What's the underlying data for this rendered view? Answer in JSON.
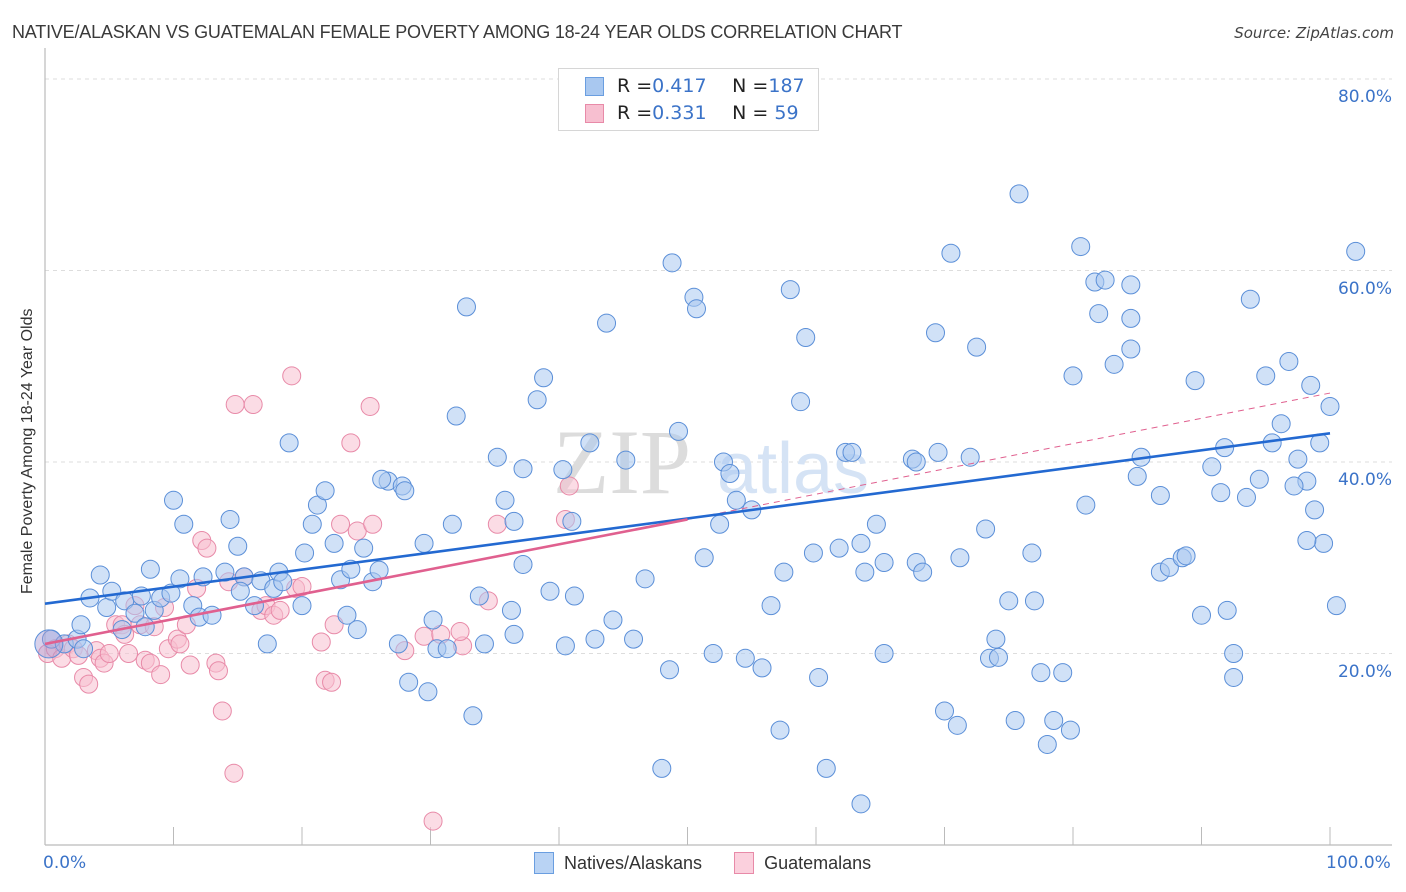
{
  "title": "NATIVE/ALASKAN VS GUATEMALAN FEMALE POVERTY AMONG 18-24 YEAR OLDS CORRELATION CHART",
  "source": "Source: ZipAtlas.com",
  "watermark": {
    "zip": "ZIP",
    "atlas": "atlas"
  },
  "legend": {
    "rows": [
      {
        "r_label": "R = ",
        "r_value": "0.417",
        "n_label": "N = ",
        "n_value": "187",
        "color": "#a9c8f0",
        "border": "#6a9ee0"
      },
      {
        "r_label": "R = ",
        "r_value": "0.331",
        "n_label": "N = ",
        "n_value": " 59",
        "color": "#f7bfd0",
        "border": "#e88aa8"
      }
    ]
  },
  "bottom_legend": [
    "Natives/Alaskans",
    "Guatemalans"
  ],
  "chart_data": {
    "type": "scatter",
    "title": "NATIVE/ALASKAN VS GUATEMALAN FEMALE POVERTY AMONG 18-24 YEAR OLDS CORRELATION CHART",
    "xlabel": "",
    "ylabel": "Female Poverty Among 18-24 Year Olds",
    "xlim": [
      0,
      100
    ],
    "ylim": [
      0,
      80
    ],
    "x_tick_labels": [
      "0.0%",
      "100.0%"
    ],
    "y_ticks": [
      20,
      40,
      60,
      80
    ],
    "y_tick_labels": [
      "20.0%",
      "40.0%",
      "60.0%",
      "80.0%"
    ],
    "grid": true,
    "legend_position": "top-center",
    "series": [
      {
        "name": "Natives/Alaskans",
        "color": "#a9c8f0",
        "stroke": "#5b8fd8",
        "R": 0.417,
        "N": 187,
        "trend": {
          "x": [
            0,
            100
          ],
          "y": [
            25.2,
            43.0
          ],
          "color": "#2369d1"
        },
        "points": [
          [
            0.5,
            21.5
          ],
          [
            1.5,
            21.0
          ],
          [
            2.5,
            21.5
          ],
          [
            3,
            20.5
          ],
          [
            2.8,
            23.0
          ],
          [
            3.5,
            25.8
          ],
          [
            4.3,
            28.2
          ],
          [
            4.8,
            24.8
          ],
          [
            5.2,
            26.5
          ],
          [
            6,
            22.5
          ],
          [
            6.2,
            25.5
          ],
          [
            7,
            24.2
          ],
          [
            7.5,
            26.0
          ],
          [
            7.8,
            22.8
          ],
          [
            8.2,
            28.8
          ],
          [
            8.5,
            24.5
          ],
          [
            9,
            25.8
          ],
          [
            9.8,
            26.3
          ],
          [
            10,
            36.0
          ],
          [
            10.5,
            27.8
          ],
          [
            10.8,
            33.5
          ],
          [
            11.5,
            25.0
          ],
          [
            12,
            23.8
          ],
          [
            12.3,
            28.0
          ],
          [
            13,
            24.0
          ],
          [
            14,
            28.5
          ],
          [
            14.4,
            34.0
          ],
          [
            15,
            31.2
          ],
          [
            15.5,
            28.0
          ],
          [
            15.2,
            26.5
          ],
          [
            16.8,
            27.6
          ],
          [
            16.3,
            25.0
          ],
          [
            17.3,
            21.0
          ],
          [
            17.8,
            26.8
          ],
          [
            18.2,
            28.5
          ],
          [
            18.5,
            27.5
          ],
          [
            19,
            42.0
          ],
          [
            20,
            25.0
          ],
          [
            20.2,
            30.5
          ],
          [
            20.8,
            33.5
          ],
          [
            21.2,
            35.5
          ],
          [
            21.8,
            37.0
          ],
          [
            22.5,
            31.5
          ],
          [
            23,
            27.7
          ],
          [
            23.5,
            24.0
          ],
          [
            23.8,
            28.8
          ],
          [
            24.3,
            22.5
          ],
          [
            24.8,
            31.0
          ],
          [
            25.5,
            27.5
          ],
          [
            26,
            28.7
          ],
          [
            26.7,
            38.0
          ],
          [
            26.2,
            38.2
          ],
          [
            27.5,
            21.0
          ],
          [
            27.8,
            37.5
          ],
          [
            28,
            37.0
          ],
          [
            28.3,
            17.0
          ],
          [
            29.5,
            31.5
          ],
          [
            29.8,
            16.0
          ],
          [
            30.2,
            23.5
          ],
          [
            30.5,
            20.5
          ],
          [
            31.3,
            20.5
          ],
          [
            31.7,
            33.5
          ],
          [
            32,
            44.8
          ],
          [
            32.8,
            56.2
          ],
          [
            33.3,
            13.5
          ],
          [
            34.2,
            21.0
          ],
          [
            33.8,
            26.0
          ],
          [
            35.2,
            40.5
          ],
          [
            35.8,
            36.0
          ],
          [
            36.3,
            24.5
          ],
          [
            36.5,
            22.0
          ],
          [
            36.5,
            33.8
          ],
          [
            37.2,
            29.3
          ],
          [
            37.2,
            39.3
          ],
          [
            38.3,
            46.5
          ],
          [
            38.8,
            48.8
          ],
          [
            39.3,
            26.5
          ],
          [
            40.3,
            39.2
          ],
          [
            40.5,
            20.8
          ],
          [
            41,
            33.8
          ],
          [
            41.2,
            26.0
          ],
          [
            42.4,
            42.0
          ],
          [
            42.8,
            21.5
          ],
          [
            43.7,
            54.5
          ],
          [
            44.2,
            23.5
          ],
          [
            45.2,
            40.2
          ],
          [
            45.8,
            21.5
          ],
          [
            46.7,
            27.8
          ],
          [
            48,
            8.0
          ],
          [
            48.6,
            18.3
          ],
          [
            48.8,
            60.8
          ],
          [
            49.3,
            43.2
          ],
          [
            50.5,
            57.2
          ],
          [
            50.7,
            56.0
          ],
          [
            51.3,
            30.0
          ],
          [
            52,
            20.0
          ],
          [
            52.8,
            40.0
          ],
          [
            52.5,
            33.5
          ],
          [
            53.3,
            38.8
          ],
          [
            53.8,
            36.0
          ],
          [
            54.5,
            19.5
          ],
          [
            55,
            35.0
          ],
          [
            55.8,
            18.5
          ],
          [
            56.5,
            25.0
          ],
          [
            57.2,
            12.0
          ],
          [
            57.5,
            28.5
          ],
          [
            58,
            58.0
          ],
          [
            58.8,
            46.3
          ],
          [
            59.2,
            53.0
          ],
          [
            60.2,
            17.5
          ],
          [
            59.8,
            30.5
          ],
          [
            60.8,
            8.0
          ],
          [
            61.8,
            31.0
          ],
          [
            62.3,
            41.0
          ],
          [
            62.8,
            41.0
          ],
          [
            63.5,
            31.5
          ],
          [
            63.8,
            28.5
          ],
          [
            63.5,
            4.3
          ],
          [
            64.7,
            33.5
          ],
          [
            65.3,
            29.5
          ],
          [
            65.3,
            20.0
          ],
          [
            67.5,
            40.3
          ],
          [
            67.8,
            40.0
          ],
          [
            67.8,
            29.5
          ],
          [
            68.3,
            28.5
          ],
          [
            69.3,
            53.5
          ],
          [
            69.5,
            41.0
          ],
          [
            70,
            14.0
          ],
          [
            70.5,
            61.8
          ],
          [
            71,
            12.5
          ],
          [
            71.2,
            30.0
          ],
          [
            72,
            40.5
          ],
          [
            72.5,
            52.0
          ],
          [
            73.2,
            33.0
          ],
          [
            73.5,
            19.5
          ],
          [
            74,
            21.5
          ],
          [
            74.2,
            19.6
          ],
          [
            75,
            25.5
          ],
          [
            75.5,
            13.0
          ],
          [
            75.8,
            68.0
          ],
          [
            76.8,
            30.5
          ],
          [
            77,
            25.5
          ],
          [
            78.5,
            13.0
          ],
          [
            77.5,
            18.0
          ],
          [
            78,
            10.5
          ],
          [
            79.2,
            18.0
          ],
          [
            79.8,
            12.0
          ],
          [
            80,
            49.0
          ],
          [
            80.6,
            62.5
          ],
          [
            81,
            35.5
          ],
          [
            81.7,
            58.8
          ],
          [
            82,
            55.5
          ],
          [
            82.5,
            59.0
          ],
          [
            83.2,
            50.2
          ],
          [
            84.5,
            51.8
          ],
          [
            84.5,
            55.0
          ],
          [
            84.5,
            58.5
          ],
          [
            85,
            38.5
          ],
          [
            85.3,
            40.5
          ],
          [
            86.8,
            36.5
          ],
          [
            86.8,
            28.5
          ],
          [
            87.5,
            29.0
          ],
          [
            88.5,
            30.0
          ],
          [
            88.8,
            30.2
          ],
          [
            89.5,
            48.5
          ],
          [
            90,
            24.0
          ],
          [
            90.8,
            39.5
          ],
          [
            91.5,
            36.8
          ],
          [
            91.8,
            41.5
          ],
          [
            92,
            24.5
          ],
          [
            92.5,
            20.0
          ],
          [
            92.5,
            17.5
          ],
          [
            93.8,
            57.0
          ],
          [
            93.5,
            36.3
          ],
          [
            95,
            49.0
          ],
          [
            94.5,
            38.2
          ],
          [
            95.5,
            42.0
          ],
          [
            96.8,
            50.5
          ],
          [
            96.2,
            44.0
          ],
          [
            97.5,
            40.3
          ],
          [
            98.2,
            38.0
          ],
          [
            97.2,
            37.5
          ],
          [
            98.5,
            48.0
          ],
          [
            99.2,
            42.0
          ],
          [
            100,
            45.8
          ],
          [
            99.5,
            31.5
          ],
          [
            100.5,
            25.0
          ],
          [
            98.2,
            31.8
          ],
          [
            98.8,
            35.0
          ],
          [
            102,
            62.0
          ]
        ]
      },
      {
        "name": "Guatemalans",
        "color": "#f7bfd0",
        "stroke": "#e88aa8",
        "R": 0.331,
        "N": 59,
        "trend": {
          "x": [
            0,
            50
          ],
          "y": [
            21.0,
            34.0
          ],
          "color": "#e0608f"
        },
        "trend_extension": {
          "x": [
            50,
            100
          ],
          "y": [
            34.0,
            47.2
          ],
          "dashed": true
        },
        "points": [
          [
            0.2,
            20.0
          ],
          [
            0.8,
            20.5
          ],
          [
            1.3,
            19.5
          ],
          [
            1.8,
            21.0
          ],
          [
            2.2,
            20.5
          ],
          [
            2.6,
            19.8
          ],
          [
            3,
            17.5
          ],
          [
            3.4,
            16.8
          ],
          [
            4,
            20.3
          ],
          [
            4.3,
            19.5
          ],
          [
            4.6,
            19.0
          ],
          [
            5,
            20.0
          ],
          [
            5.5,
            23.0
          ],
          [
            6,
            23.0
          ],
          [
            6.2,
            22.0
          ],
          [
            6.5,
            20.0
          ],
          [
            7,
            25.0
          ],
          [
            7.4,
            23.0
          ],
          [
            7.8,
            19.3
          ],
          [
            8.2,
            19.0
          ],
          [
            8.5,
            22.8
          ],
          [
            9,
            17.8
          ],
          [
            9.3,
            24.8
          ],
          [
            9.6,
            20.5
          ],
          [
            10.3,
            21.5
          ],
          [
            10.5,
            21.0
          ],
          [
            11,
            23.0
          ],
          [
            11.3,
            18.8
          ],
          [
            11.8,
            26.8
          ],
          [
            12.2,
            31.8
          ],
          [
            12.6,
            31.0
          ],
          [
            13.3,
            19.0
          ],
          [
            13.5,
            18.2
          ],
          [
            13.8,
            14.0
          ],
          [
            14.3,
            27.5
          ],
          [
            14.8,
            46.0
          ],
          [
            14.7,
            7.5
          ],
          [
            15.5,
            28.0
          ],
          [
            16.2,
            46.0
          ],
          [
            16.8,
            24.5
          ],
          [
            17.2,
            25.0
          ],
          [
            17.8,
            24.0
          ],
          [
            18.3,
            24.5
          ],
          [
            19.2,
            49.0
          ],
          [
            19.5,
            26.8
          ],
          [
            20,
            27.0
          ],
          [
            21.5,
            21.2
          ],
          [
            21.8,
            17.2
          ],
          [
            22.3,
            17.0
          ],
          [
            22.5,
            23.0
          ],
          [
            23,
            33.5
          ],
          [
            23.8,
            42.0
          ],
          [
            24.3,
            32.8
          ],
          [
            25.3,
            45.8
          ],
          [
            25.5,
            33.5
          ],
          [
            28,
            20.3
          ],
          [
            29.5,
            21.8
          ],
          [
            30.2,
            2.5
          ],
          [
            30.8,
            22.0
          ],
          [
            32.5,
            20.8
          ],
          [
            32.3,
            22.3
          ],
          [
            34.5,
            25.5
          ],
          [
            35.2,
            33.5
          ],
          [
            40.8,
            37.5
          ],
          [
            40.5,
            34.0
          ]
        ]
      }
    ]
  }
}
